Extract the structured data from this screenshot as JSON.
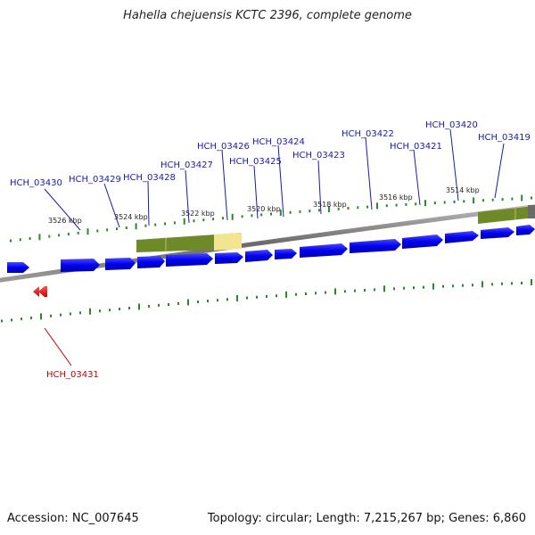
{
  "title": "Hahella chejuensis KCTC 2396, complete genome",
  "footer": {
    "accession": "Accession: NC_007645",
    "summary": "Topology: circular; Length: 7,215,267 bp; Genes: 6,860"
  },
  "colors": {
    "forward_gene": "#0000ee",
    "reverse_gene": "#ee0000",
    "tick": "#2a8a2a",
    "backbone": "#777777",
    "feature_band": "#6e8a28",
    "feature_highlight": "#f3e58f",
    "label_forward": "#1a1aaa",
    "label_reverse": "#cc0000"
  },
  "scale_labels": [
    "3526 kbp",
    "3524 kbp",
    "3522 kbp",
    "3520 kbp",
    "3518 kbp",
    "3516 kbp",
    "3514 kbp"
  ],
  "gene_labels_forward": [
    "HCH_03430",
    "HCH_03429",
    "HCH_03428",
    "HCH_03427",
    "HCH_03426",
    "HCH_03425",
    "HCH_03424",
    "HCH_03423",
    "HCH_03422",
    "HCH_03421",
    "HCH_03420",
    "HCH_03419"
  ],
  "gene_labels_reverse": [
    "HCH_03431"
  ]
}
